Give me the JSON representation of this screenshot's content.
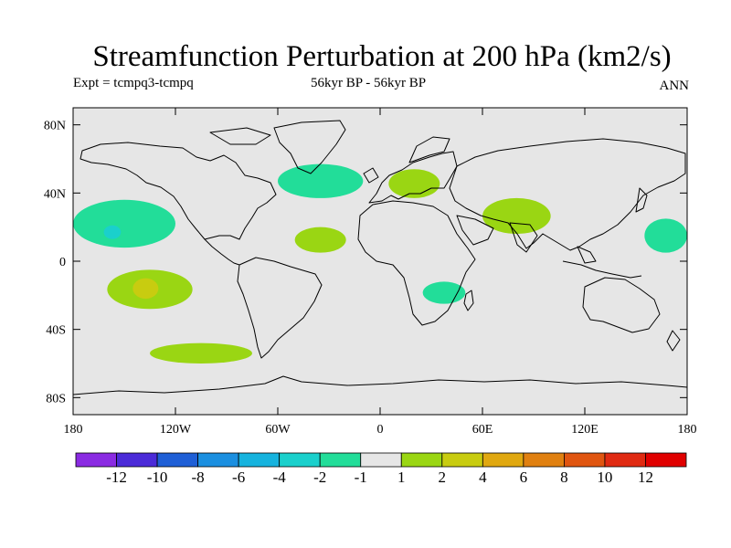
{
  "title": "Streamfunction Perturbation at 200 hPa (km2/s)",
  "subtitle_left": "Expt = tcmpq3-tcmpq",
  "subtitle_center": "56kyr BP - 56kyr BP",
  "subtitle_right": "ANN",
  "y_ticks": [
    "80N",
    "40N",
    "0",
    "40S",
    "80S"
  ],
  "x_ticks": [
    "180",
    "120W",
    "60W",
    "0",
    "60E",
    "120E",
    "180"
  ],
  "colorbar": {
    "labels": [
      "-12",
      "-10",
      "-8",
      "-6",
      "-4",
      "-2",
      "-1",
      "1",
      "2",
      "4",
      "6",
      "8",
      "10",
      "12"
    ],
    "colors": [
      "#8a2be2",
      "#4b2bd8",
      "#1f5fd6",
      "#1b8fe0",
      "#16b3de",
      "#1ad0cc",
      "#22dd99",
      "#e6e6e6",
      "#9ad613",
      "#c8cc10",
      "#e0a810",
      "#e08010",
      "#e05510",
      "#e02a12",
      "#e00000"
    ]
  },
  "chart_data": {
    "type": "map",
    "region": "global",
    "lon_range": [
      -180,
      180
    ],
    "lat_range": [
      -90,
      90
    ],
    "background_color": "#e6e6e6",
    "contour_regions": [
      {
        "name": "north-pacific-east",
        "level": "-2 to -1",
        "color": "#22dd99",
        "lon": [
          -180,
          -120
        ],
        "lat": [
          8,
          36
        ]
      },
      {
        "name": "north-pacific-core",
        "level": "-4 to -2",
        "color": "#1ad0cc",
        "lon": [
          -162,
          -152
        ],
        "lat": [
          13,
          21
        ]
      },
      {
        "name": "north-atlantic",
        "level": "-2 to -1",
        "color": "#22dd99",
        "lon": [
          -60,
          -10
        ],
        "lat": [
          37,
          57
        ]
      },
      {
        "name": "tropical-atlantic",
        "level": "1 to 2",
        "color": "#9ad613",
        "lon": [
          -50,
          -20
        ],
        "lat": [
          5,
          20
        ]
      },
      {
        "name": "europe",
        "level": "1 to 2",
        "color": "#9ad613",
        "lon": [
          5,
          35
        ],
        "lat": [
          37,
          54
        ]
      },
      {
        "name": "south-asia",
        "level": "1 to 2",
        "color": "#9ad613",
        "lon": [
          60,
          100
        ],
        "lat": [
          16,
          37
        ]
      },
      {
        "name": "west-pacific",
        "level": "-2 to -1",
        "color": "#22dd99",
        "lon": [
          155,
          180
        ],
        "lat": [
          5,
          25
        ]
      },
      {
        "name": "south-pacific",
        "level": "1 to 2",
        "color": "#9ad613",
        "lon": [
          -160,
          -110
        ],
        "lat": [
          -28,
          -5
        ]
      },
      {
        "name": "south-pacific-core",
        "level": "2 to 4",
        "color": "#c8cc10",
        "lon": [
          -145,
          -130
        ],
        "lat": [
          -22,
          -10
        ]
      },
      {
        "name": "south-africa",
        "level": "-2 to -1",
        "color": "#22dd99",
        "lon": [
          25,
          50
        ],
        "lat": [
          -25,
          -12
        ]
      },
      {
        "name": "southern-ocean",
        "level": "1 to 2",
        "color": "#9ad613",
        "lon": [
          -135,
          -75
        ],
        "lat": [
          -60,
          -48
        ]
      }
    ]
  }
}
